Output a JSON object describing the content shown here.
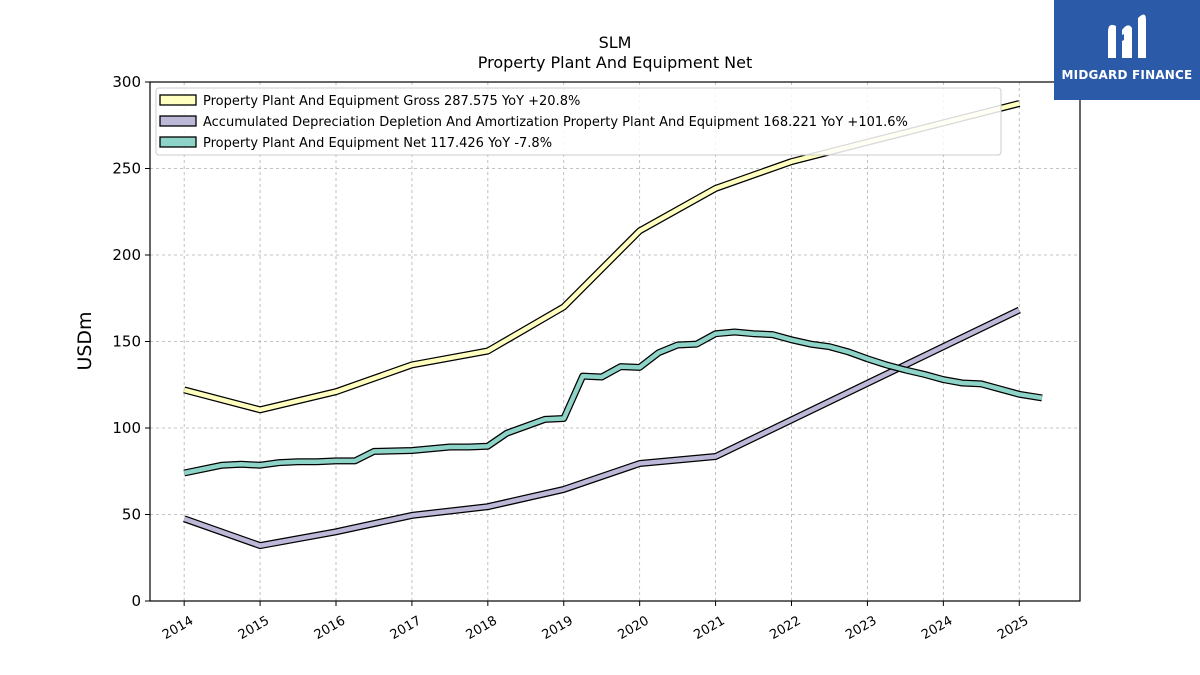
{
  "chart_data": {
    "type": "line",
    "title": "SLM",
    "subtitle": "Property Plant And Equipment Net",
    "ylabel": "USDm",
    "ylim": [
      0,
      300
    ],
    "yticks": [
      0,
      50,
      100,
      150,
      200,
      250,
      300
    ],
    "xticks": [
      "2014",
      "2015",
      "2016",
      "2017",
      "2018",
      "2019",
      "2020",
      "2021",
      "2022",
      "2023",
      "2024",
      "2025"
    ],
    "xlim": [
      2013.55,
      2025.8
    ],
    "grid": true,
    "legend_position": "top-left",
    "series": [
      {
        "name": "Property Plant And Equipment Gross  287.575 YoY +20.8%",
        "color": "#ffffbf",
        "points": [
          [
            2014.0,
            122
          ],
          [
            2015.0,
            110.5
          ],
          [
            2016.0,
            121
          ],
          [
            2017.0,
            136.5
          ],
          [
            2018.0,
            144.5
          ],
          [
            2019.0,
            170
          ],
          [
            2020.0,
            214
          ],
          [
            2021.0,
            238.5
          ],
          [
            2022.0,
            254
          ],
          [
            2025.0,
            287.6
          ]
        ]
      },
      {
        "name": "Accumulated Depreciation Depletion And Amortization Property Plant And Equipment  168.221 YoY +101.6%",
        "color": "#bcb8d8",
        "points": [
          [
            2014.0,
            47.5
          ],
          [
            2015.0,
            32
          ],
          [
            2016.0,
            40
          ],
          [
            2017.0,
            49.5
          ],
          [
            2018.0,
            54.5
          ],
          [
            2019.0,
            64.5
          ],
          [
            2020.0,
            79.5
          ],
          [
            2021.0,
            83.5
          ],
          [
            2025.0,
            168.2
          ]
        ]
      },
      {
        "name": "Property Plant And Equipment Net  117.426 YoY -7.8%",
        "color": "#8dd3c7",
        "points": [
          [
            2014.0,
            74
          ],
          [
            2014.5,
            78.5
          ],
          [
            2014.75,
            79
          ],
          [
            2015.0,
            78.5
          ],
          [
            2015.25,
            80
          ],
          [
            2015.5,
            80.5
          ],
          [
            2015.75,
            80.5
          ],
          [
            2016.0,
            81
          ],
          [
            2016.25,
            81
          ],
          [
            2016.5,
            86.5
          ],
          [
            2017.0,
            87
          ],
          [
            2017.5,
            89
          ],
          [
            2017.75,
            89
          ],
          [
            2018.0,
            89.5
          ],
          [
            2018.25,
            97
          ],
          [
            2018.75,
            105
          ],
          [
            2019.0,
            105.5
          ],
          [
            2019.25,
            130
          ],
          [
            2019.5,
            129.5
          ],
          [
            2019.75,
            135.5
          ],
          [
            2020.0,
            135
          ],
          [
            2020.25,
            143.5
          ],
          [
            2020.5,
            148
          ],
          [
            2020.75,
            148.5
          ],
          [
            2021.0,
            154.5
          ],
          [
            2021.25,
            155.5
          ],
          [
            2021.5,
            154.5
          ],
          [
            2021.75,
            154
          ],
          [
            2022.0,
            151
          ],
          [
            2022.25,
            148.5
          ],
          [
            2022.5,
            147
          ],
          [
            2022.75,
            144
          ],
          [
            2023.0,
            140
          ],
          [
            2023.25,
            136.5
          ],
          [
            2023.5,
            133.5
          ],
          [
            2023.75,
            131
          ],
          [
            2024.0,
            128
          ],
          [
            2024.25,
            126
          ],
          [
            2024.5,
            125.5
          ],
          [
            2024.75,
            122.5
          ],
          [
            2025.0,
            119.5
          ],
          [
            2025.3,
            117.4
          ]
        ]
      }
    ]
  },
  "logo": {
    "text": "MIDGARD FINANCE"
  }
}
